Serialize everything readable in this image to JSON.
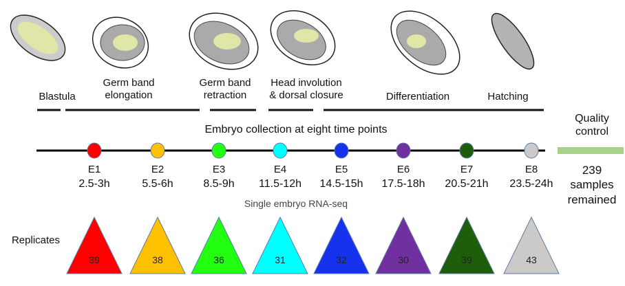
{
  "stages": [
    {
      "label_lines": [
        "Blastula"
      ]
    },
    {
      "label_lines": [
        "Germ band",
        "elongation"
      ]
    },
    {
      "label_lines": [
        "Germ band",
        "retraction"
      ]
    },
    {
      "label_lines": [
        "Head involution",
        "& dorsal closure"
      ]
    },
    {
      "label_lines": [
        "Differentiation"
      ]
    },
    {
      "label_lines": [
        "Hatching"
      ]
    }
  ],
  "collection_title": "Embryo collection at eight time points",
  "method_label": "Single embryo RNA-seq",
  "replicates_label": "Replicates",
  "quality_control": {
    "title_lines": [
      "Quality",
      "control"
    ],
    "result_lines": [
      "239",
      "samples",
      "remained"
    ],
    "bar_color": "#a9d18e"
  },
  "timepoints": [
    {
      "id": "E1",
      "time": "2.5-3h",
      "color": "#ff0000",
      "replicates": "39"
    },
    {
      "id": "E2",
      "time": "5.5-6h",
      "color": "#ffc000",
      "replicates": "38"
    },
    {
      "id": "E3",
      "time": "8.5-9h",
      "color": "#22ff11",
      "replicates": "36"
    },
    {
      "id": "E4",
      "time": "11.5-12h",
      "color": "#00ffff",
      "replicates": "31"
    },
    {
      "id": "E5",
      "time": "14.5-15h",
      "color": "#1632ee",
      "replicates": "32"
    },
    {
      "id": "E6",
      "time": "17.5-18h",
      "color": "#7030a0",
      "replicates": "30"
    },
    {
      "id": "E7",
      "time": "20.5-21h",
      "color": "#1e5e0a",
      "replicates": "39"
    },
    {
      "id": "E8",
      "time": "23.5-24h",
      "color": "#cccac9",
      "replicates": "43"
    }
  ]
}
